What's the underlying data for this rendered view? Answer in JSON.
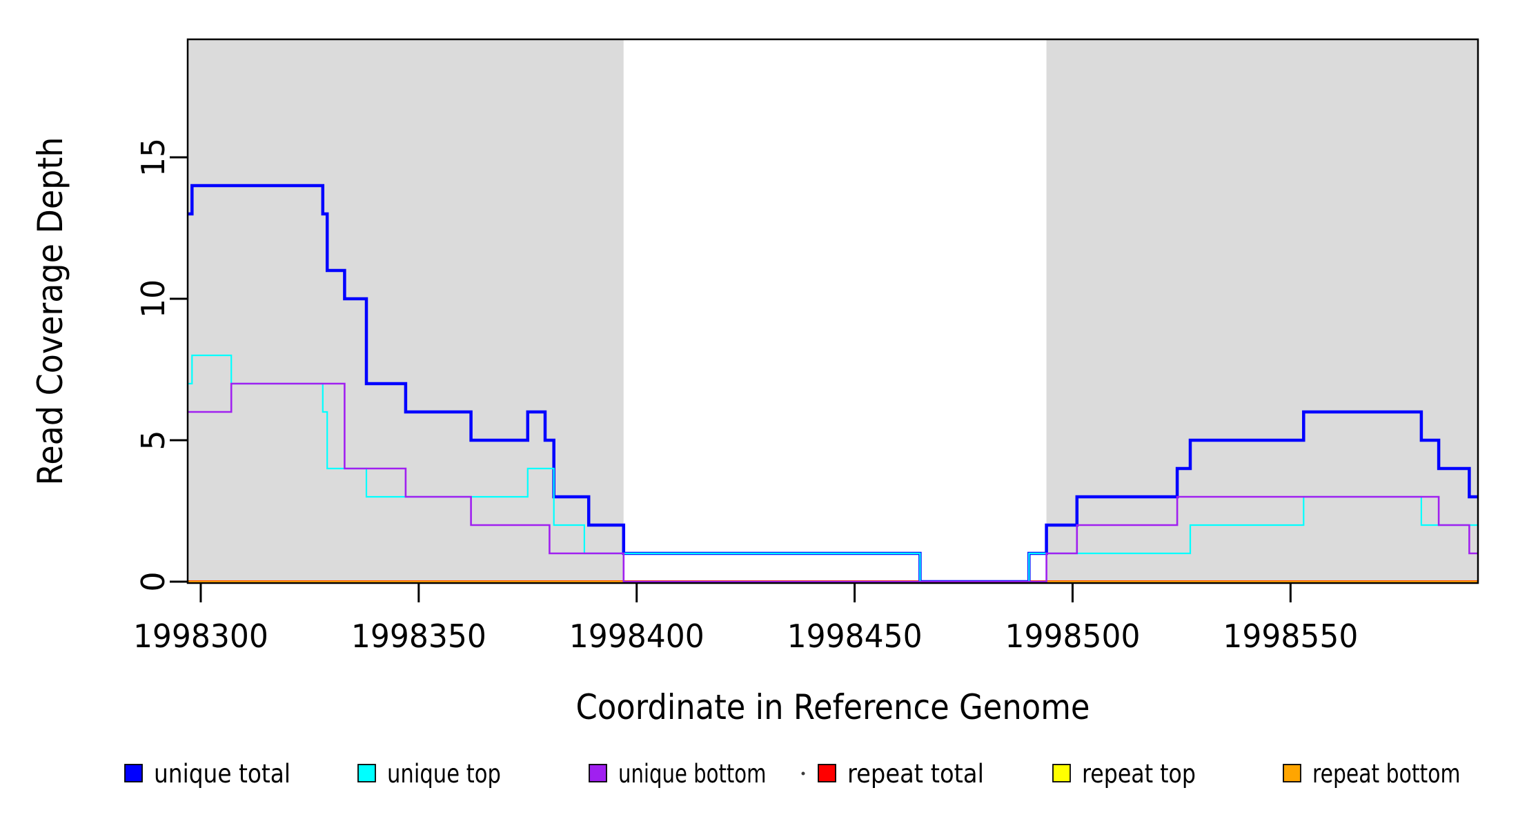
{
  "chart_data": {
    "type": "line",
    "subtype": "step-post",
    "title": "",
    "xlabel": "Coordinate in Reference Genome",
    "ylabel": "Read Coverage Depth",
    "xlim": [
      1998297,
      1998593
    ],
    "ylim": [
      0,
      19.2
    ],
    "grid": false,
    "x_ticks": [
      1998300,
      1998350,
      1998400,
      1998450,
      1998500,
      1998550
    ],
    "x_tick_labels": [
      "1998300",
      "1998350",
      "1998400",
      "1998450",
      "1998500",
      "1998550"
    ],
    "y_ticks": [
      0,
      5,
      10,
      15
    ],
    "y_tick_labels": [
      "0",
      "5",
      "10",
      "15"
    ],
    "shaded_regions": [
      {
        "name": "left-shaded-region",
        "x0": 1998297,
        "x1": 1998397,
        "color": "#DBDBDB"
      },
      {
        "name": "right-shaded-region",
        "x0": 1998494,
        "x1": 1998593,
        "color": "#DBDBDB"
      }
    ],
    "series": [
      {
        "name": "repeat total",
        "color": "#FF0000",
        "width": 4.0,
        "steps": [
          [
            1998297,
            0
          ]
        ]
      },
      {
        "name": "repeat top",
        "color": "#FFFF00",
        "width": 2.0,
        "steps": [
          [
            1998297,
            0
          ]
        ]
      },
      {
        "name": "repeat bottom",
        "color": "#FFA500",
        "width": 3.0,
        "steps": [
          [
            1998297,
            0
          ]
        ]
      },
      {
        "name": "unique total",
        "color": "#0000FF",
        "width": 4.5,
        "steps": [
          [
            1998297,
            13
          ],
          [
            1998298,
            14
          ],
          [
            1998328,
            13
          ],
          [
            1998329,
            11
          ],
          [
            1998333,
            10
          ],
          [
            1998338,
            7
          ],
          [
            1998347,
            6
          ],
          [
            1998362,
            5
          ],
          [
            1998375,
            6
          ],
          [
            1998379,
            5
          ],
          [
            1998381,
            3
          ],
          [
            1998389,
            2
          ],
          [
            1998397,
            1
          ],
          [
            1998465,
            0
          ],
          [
            1998490,
            1
          ],
          [
            1998494,
            2
          ],
          [
            1998501,
            3
          ],
          [
            1998524,
            4
          ],
          [
            1998527,
            5
          ],
          [
            1998553,
            6
          ],
          [
            1998580,
            5
          ],
          [
            1998584,
            4
          ],
          [
            1998591,
            3
          ]
        ]
      },
      {
        "name": "unique top",
        "color": "#00FFFF",
        "width": 2.2,
        "steps": [
          [
            1998297,
            7
          ],
          [
            1998298,
            8
          ],
          [
            1998307,
            7
          ],
          [
            1998328,
            6
          ],
          [
            1998329,
            4
          ],
          [
            1998338,
            3
          ],
          [
            1998375,
            4
          ],
          [
            1998381,
            2
          ],
          [
            1998388,
            1
          ],
          [
            1998465,
            0
          ],
          [
            1998490,
            1
          ],
          [
            1998527,
            2
          ],
          [
            1998553,
            3
          ],
          [
            1998580,
            2
          ]
        ]
      },
      {
        "name": "unique bottom",
        "color": "#A020F0",
        "width": 2.6,
        "steps": [
          [
            1998297,
            6
          ],
          [
            1998307,
            7
          ],
          [
            1998333,
            4
          ],
          [
            1998347,
            3
          ],
          [
            1998362,
            2
          ],
          [
            1998380,
            1
          ],
          [
            1998397,
            0
          ],
          [
            1998494,
            1
          ],
          [
            1998501,
            2
          ],
          [
            1998524,
            3
          ],
          [
            1998584,
            2
          ],
          [
            1998591,
            1
          ]
        ]
      }
    ],
    "legend_position": "bottom",
    "legend": [
      {
        "label": "unique total",
        "color": "#0000FF"
      },
      {
        "label": "unique top",
        "color": "#00FFFF"
      },
      {
        "label": "unique bottom",
        "color": "#A020F0"
      },
      {
        "label": "repeat total",
        "color": "#FF0000"
      },
      {
        "label": "repeat top",
        "color": "#FFFF00"
      },
      {
        "label": "repeat bottom",
        "color": "#FFA500"
      }
    ],
    "stray_mark": "·"
  }
}
